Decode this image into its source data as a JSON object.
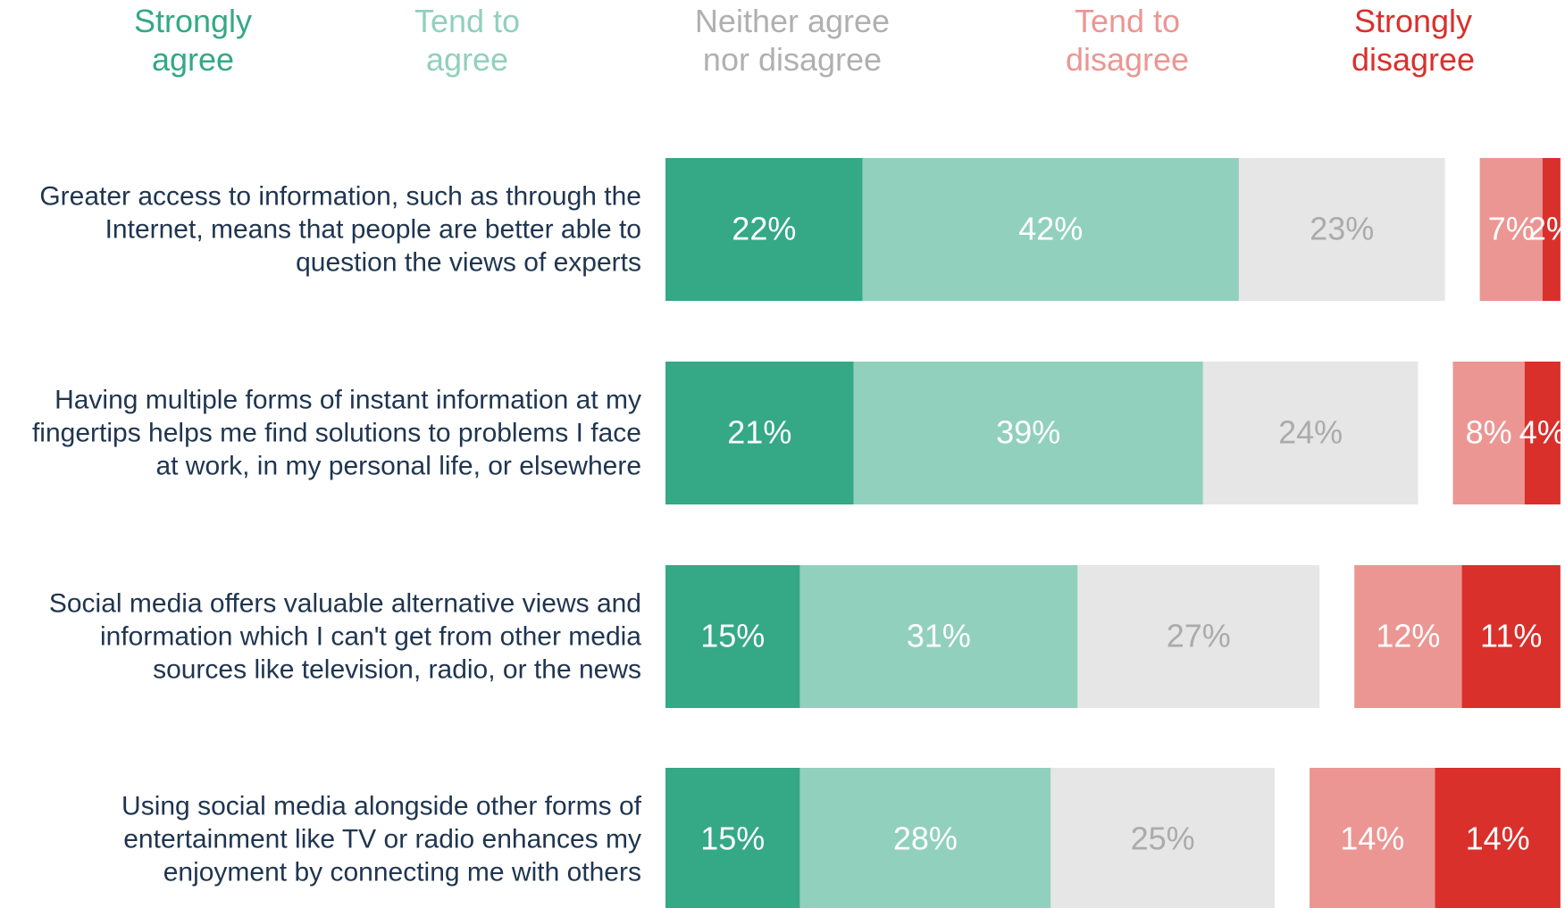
{
  "chart_data": {
    "type": "diverging_bar",
    "categories": [
      "Greater access to information, such as through the Internet, means that people are better able to question the views of experts",
      "Having multiple forms of instant information at my fingertips helps me find solutions to problems I face at work, in my personal life, or elsewhere",
      "Social media offers valuable alternative views and information which I can't get from other media sources like television, radio, or the news",
      "Using social media alongside other forms of entertainment like TV or radio enhances my enjoyment by connecting me with others"
    ],
    "series": [
      {
        "name": "Strongly agree",
        "color": "#35a886",
        "header_color": "#35a886",
        "label_color": "#ffffff",
        "values": [
          22,
          21,
          15,
          15
        ],
        "value_labels": [
          "22%",
          "21%",
          "15%",
          "15%"
        ]
      },
      {
        "name": "Tend to agree",
        "color": "#91d0bd",
        "header_color": "#91d0bd",
        "label_color": "#ffffff",
        "values": [
          42,
          39,
          31,
          28
        ],
        "value_labels": [
          "42%",
          "39%",
          "31%",
          "28%"
        ]
      },
      {
        "name": "Neither agree nor disagree",
        "color": "#e6e6e6",
        "header_color": "#b0b0b0",
        "label_color": "#ababab",
        "values": [
          23,
          24,
          27,
          25
        ],
        "value_labels": [
          "23%",
          "24%",
          "27%",
          "25%"
        ]
      },
      {
        "name": "Tend to disagree",
        "color": "#eb9693",
        "header_color": "#eb9693",
        "label_color": "#ffffff",
        "values": [
          7,
          8,
          12,
          14
        ],
        "value_labels": [
          "7%",
          "8%",
          "12%",
          "14%"
        ]
      },
      {
        "name": "Strongly disagree",
        "color": "#d9302c",
        "header_color": "#d9302c",
        "label_color": "#ffffff",
        "values": [
          2,
          4,
          11,
          14
        ],
        "value_labels": [
          "2%",
          "4%",
          "11%",
          "14%"
        ]
      }
    ]
  }
}
